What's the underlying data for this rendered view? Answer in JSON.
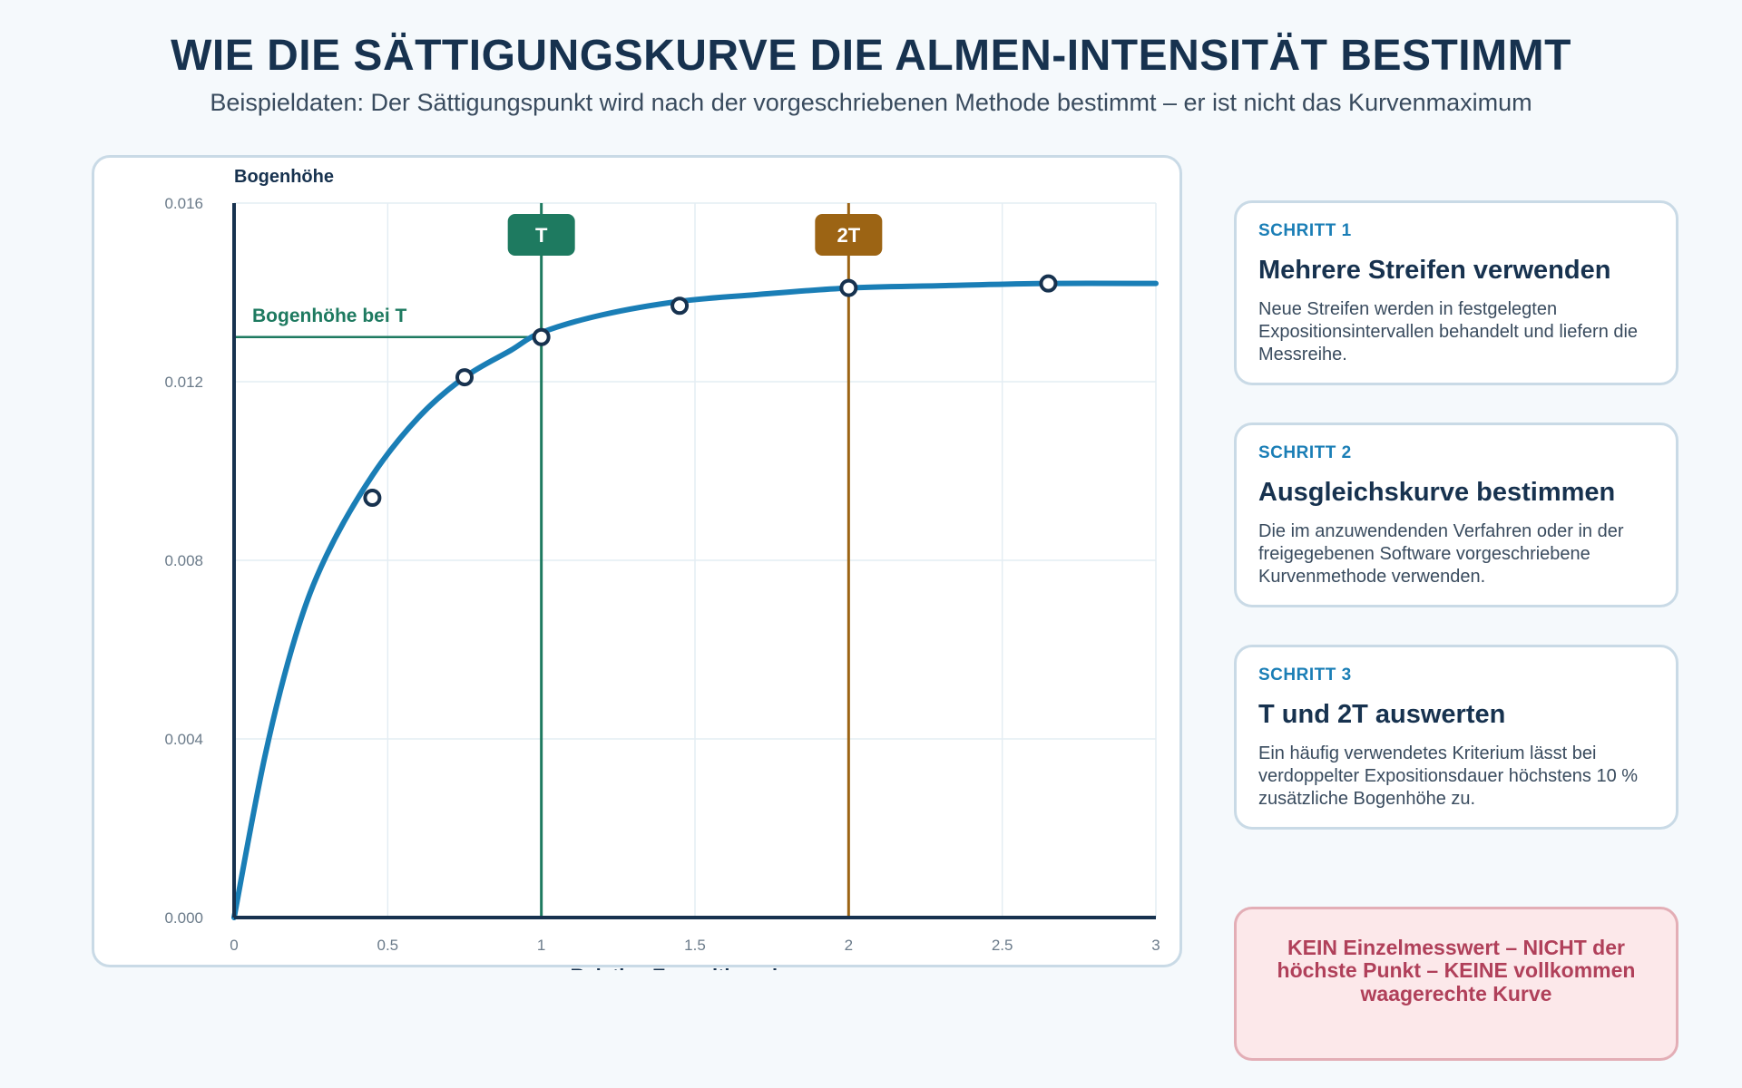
{
  "header": {
    "title": "WIE DIE SÄTTIGUNGSKURVE DIE ALMEN-INTENSITÄT BESTIMMT",
    "subtitle": "Beispieldaten: Der Sättigungspunkt wird nach der vorgeschriebenen Methode bestimmt – er ist nicht das Kurvenmaximum"
  },
  "chart_data": {
    "type": "line",
    "xlabel": "Relative Expositionsdauer",
    "ylabel": "Bogenhöhe",
    "xlim": [
      0,
      3
    ],
    "ylim": [
      0,
      0.016
    ],
    "x_ticks": [
      "0",
      "0.5",
      "1",
      "1.5",
      "2",
      "2.5",
      "3"
    ],
    "y_ticks": [
      "0.000",
      "0.004",
      "0.008",
      "0.012",
      "0.016"
    ],
    "grid": true,
    "series": [
      {
        "type": "line",
        "x": [
          0,
          0.1,
          0.2,
          0.3,
          0.45,
          0.6,
          0.75,
          0.9,
          1.0,
          1.2,
          1.45,
          1.7,
          2.0,
          2.3,
          2.65,
          3.0
        ],
        "y": [
          0,
          0.0036,
          0.0063,
          0.0081,
          0.0099,
          0.0112,
          0.0121,
          0.0127,
          0.0131,
          0.0135,
          0.0138,
          0.01395,
          0.0141,
          0.01415,
          0.0142,
          0.0142
        ]
      },
      {
        "type": "scatter",
        "x": [
          0.45,
          0.75,
          1.0,
          1.45,
          2.0,
          2.65
        ],
        "y": [
          0.0094,
          0.0121,
          0.013,
          0.0137,
          0.0141,
          0.0142
        ]
      }
    ],
    "annotations": {
      "T": {
        "x": 1.0,
        "label": "T",
        "color": "#1e7a60"
      },
      "T2": {
        "x": 2.0,
        "label": "2T",
        "color": "#9c6414"
      },
      "arc_at_T": {
        "y": 0.013,
        "label": "Bogenhöhe bei T",
        "color": "#1e7a60"
      }
    },
    "colors": {
      "curve": "#1a7eb6",
      "axis": "#17324f",
      "grid": "#e4edf3",
      "tick_label": "#6b7b8a",
      "point_stroke": "#17324f"
    }
  },
  "steps": [
    {
      "step": "SCHRITT 1",
      "title": "Mehrere Streifen verwenden",
      "text": "Neue Streifen werden in festgelegten Expositionsintervallen behandelt und liefern die Messreihe."
    },
    {
      "step": "SCHRITT 2",
      "title": "Ausgleichskurve bestimmen",
      "text": "Die im anzuwendenden Verfahren oder in der freigegebenen Software vorgeschriebene Kurvenmethode verwenden."
    },
    {
      "step": "SCHRITT 3",
      "title": "T und 2T auswerten",
      "text": "Ein häufig verwendetes Kriterium lässt bei verdoppelter Expositionsdauer höchstens 10 % zusätzliche Bogenhöhe zu."
    }
  ],
  "warning": "KEIN Einzelmesswert – NICHT der höchste Punkt – KEINE vollkommen waagerechte Kurve"
}
